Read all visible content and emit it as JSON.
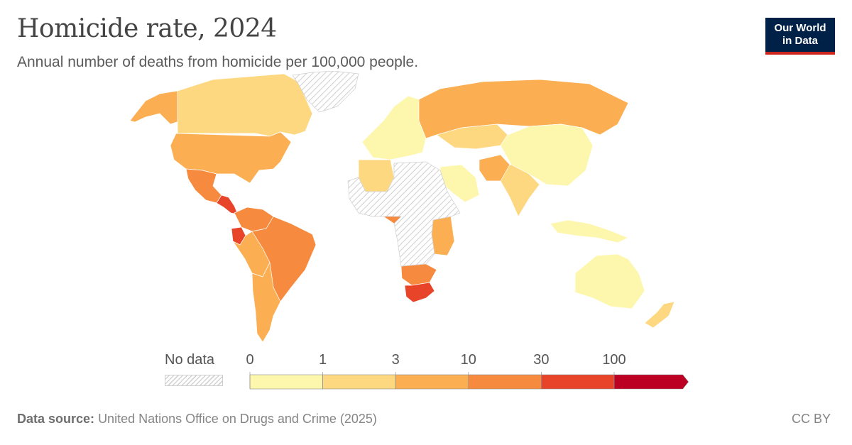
{
  "header": {
    "title": "Homicide rate, 2024",
    "subtitle": "Annual number of deaths from homicide per 100,000 people."
  },
  "logo": {
    "line1": "Our World",
    "line2": "in Data"
  },
  "legend": {
    "no_data_label": "No data",
    "ticks": [
      "0",
      "1",
      "3",
      "10",
      "30",
      "100"
    ],
    "bins": [
      {
        "from": "0",
        "to": "1",
        "color": "#fdf7ad"
      },
      {
        "from": "1",
        "to": "3",
        "color": "#fdd880"
      },
      {
        "from": "3",
        "to": "10",
        "color": "#fbae52"
      },
      {
        "from": "10",
        "to": "30",
        "color": "#f68a3e"
      },
      {
        "from": "30",
        "to": "100",
        "color": "#e8442a"
      },
      {
        "from": "100",
        "to": "",
        "color": "#bc0024"
      }
    ]
  },
  "map_regions": [
    {
      "name": "Alaska",
      "bin": 2
    },
    {
      "name": "Canada",
      "bin": 1
    },
    {
      "name": "Greenland",
      "bin": -1
    },
    {
      "name": "United States",
      "bin": 2
    },
    {
      "name": "Mexico",
      "bin": 3
    },
    {
      "name": "Central America",
      "bin": 4
    },
    {
      "name": "Colombia & Venezuela",
      "bin": 3
    },
    {
      "name": "Ecuador",
      "bin": 4
    },
    {
      "name": "Brazil",
      "bin": 3
    },
    {
      "name": "Peru & Bolivia",
      "bin": 2
    },
    {
      "name": "Argentina & Chile",
      "bin": 2
    },
    {
      "name": "Western Europe",
      "bin": 0
    },
    {
      "name": "Russia",
      "bin": 2
    },
    {
      "name": "Kazakhstan",
      "bin": 1
    },
    {
      "name": "China",
      "bin": 0
    },
    {
      "name": "India",
      "bin": 1
    },
    {
      "name": "Saudi Arabia",
      "bin": 0
    },
    {
      "name": "Afghanistan & Pakistan",
      "bin": 2
    },
    {
      "name": "Algeria",
      "bin": 1
    },
    {
      "name": "Nigeria",
      "bin": 3
    },
    {
      "name": "Southern Africa",
      "bin": 3
    },
    {
      "name": "South Africa",
      "bin": 4
    },
    {
      "name": "East Africa",
      "bin": 2
    },
    {
      "name": "Sahara & Central Africa",
      "bin": -1
    },
    {
      "name": "Indonesia",
      "bin": 0
    },
    {
      "name": "Australia",
      "bin": 0
    },
    {
      "name": "New Zealand",
      "bin": 1
    }
  ],
  "footer": {
    "source_label": "Data source:",
    "source_text": "United Nations Office on Drugs and Crime (2025)",
    "license": "CC BY"
  }
}
